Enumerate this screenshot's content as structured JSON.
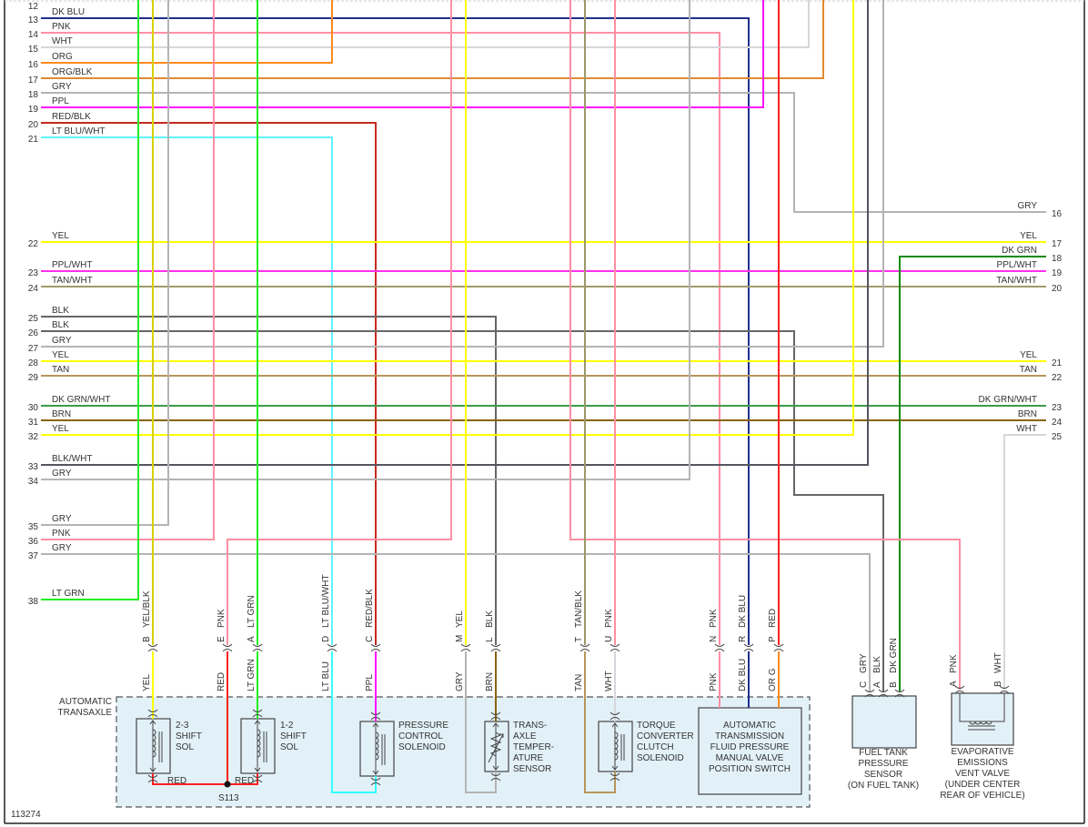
{
  "diagram_id": "113274",
  "left_pins": [
    {
      "num": "12",
      "label": ""
    },
    {
      "num": "13",
      "label": "DK BLU"
    },
    {
      "num": "14",
      "label": "PNK"
    },
    {
      "num": "15",
      "label": "WHT"
    },
    {
      "num": "16",
      "label": "ORG"
    },
    {
      "num": "17",
      "label": "ORG/BLK"
    },
    {
      "num": "18",
      "label": "GRY"
    },
    {
      "num": "19",
      "label": "PPL"
    },
    {
      "num": "20",
      "label": "RED/BLK"
    },
    {
      "num": "21",
      "label": "LT BLU/WHT"
    },
    {
      "num": "22",
      "label": "YEL"
    },
    {
      "num": "23",
      "label": "PPL/WHT"
    },
    {
      "num": "24",
      "label": "TAN/WHT"
    },
    {
      "num": "25",
      "label": "BLK"
    },
    {
      "num": "26",
      "label": "BLK"
    },
    {
      "num": "27",
      "label": "GRY"
    },
    {
      "num": "28",
      "label": "YEL"
    },
    {
      "num": "29",
      "label": "TAN"
    },
    {
      "num": "30",
      "label": "DK GRN/WHT"
    },
    {
      "num": "31",
      "label": "BRN"
    },
    {
      "num": "32",
      "label": "YEL"
    },
    {
      "num": "33",
      "label": "BLK/WHT"
    },
    {
      "num": "34",
      "label": "GRY"
    },
    {
      "num": "35",
      "label": "GRY"
    },
    {
      "num": "36",
      "label": "PNK"
    },
    {
      "num": "37",
      "label": "GRY"
    },
    {
      "num": "38",
      "label": "LT GRN"
    }
  ],
  "right_pins": [
    {
      "num": "16",
      "label": "GRY"
    },
    {
      "num": "17",
      "label": "YEL"
    },
    {
      "num": "18",
      "label": "DK GRN"
    },
    {
      "num": "19",
      "label": "PPL/WHT"
    },
    {
      "num": "20",
      "label": "TAN/WHT"
    },
    {
      "num": "21",
      "label": "YEL"
    },
    {
      "num": "22",
      "label": "TAN"
    },
    {
      "num": "23",
      "label": "DK GRN/WHT"
    },
    {
      "num": "24",
      "label": "BRN"
    },
    {
      "num": "25",
      "label": "WHT"
    }
  ],
  "connectors": [
    {
      "letter": "B",
      "upper": "YEL/BLK",
      "lower": "YEL"
    },
    {
      "letter": "E",
      "upper": "PNK",
      "lower": "RED"
    },
    {
      "letter": "A",
      "upper": "LT GRN",
      "lower": "LT GRN"
    },
    {
      "letter": "D",
      "upper": "LT BLU/WHT",
      "lower": "LT BLU"
    },
    {
      "letter": "C",
      "upper": "RED/BLK",
      "lower": "PPL"
    },
    {
      "letter": "M",
      "upper": "YEL",
      "lower": "GRY"
    },
    {
      "letter": "L",
      "upper": "BLK",
      "lower": "BRN"
    },
    {
      "letter": "T",
      "upper": "TAN/BLK",
      "lower": "TAN"
    },
    {
      "letter": "U",
      "upper": "PNK",
      "lower": "WHT"
    },
    {
      "letter": "N",
      "upper": "PNK",
      "lower": "PNK"
    },
    {
      "letter": "R",
      "upper": "DK BLU",
      "lower": "DK BLU"
    },
    {
      "letter": "P",
      "upper": "RED",
      "lower": "OR G"
    }
  ],
  "fuel_tank_connector": [
    {
      "letter": "C",
      "color": "GRY"
    },
    {
      "letter": "A",
      "color": "BLK"
    },
    {
      "letter": "B",
      "color": "DK GRN"
    }
  ],
  "evap_connector": [
    {
      "letter": "A",
      "color": "PNK"
    },
    {
      "letter": "B",
      "color": "WHT"
    }
  ],
  "transaxle_label": [
    "AUTOMATIC",
    "TRANSAXLE"
  ],
  "components": {
    "shift_23": [
      "2-3",
      "SHIFT",
      "SOL"
    ],
    "shift_12": [
      "1-2",
      "SHIFT",
      "SOL"
    ],
    "pressure_control": [
      "PRESSURE",
      "CONTROL",
      "SOLENOID"
    ],
    "temp_sensor": [
      "TRANS-",
      "AXLE",
      "TEMPER-",
      "ATURE",
      "SENSOR"
    ],
    "tcc_solenoid": [
      "TORQUE",
      "CONVERTER",
      "CLUTCH",
      "SOLENOID"
    ],
    "pressure_switch": [
      "AUTOMATIC",
      "TRANSMISSION",
      "FLUID PRESSURE",
      "MANUAL VALVE",
      "POSITION SWITCH"
    ],
    "fuel_tank_sensor": [
      "FUEL TANK",
      "PRESSURE",
      "SENSOR",
      "(ON FUEL TANK)"
    ],
    "evap_vent_valve": [
      "EVAPORATIVE",
      "EMISSIONS",
      "VENT VALVE",
      "(UNDER CENTER",
      "REAR OF VEHICLE)"
    ]
  },
  "splice": {
    "id": "S113",
    "left_label": "RED",
    "right_label": "RED"
  },
  "wire_colors": {
    "DK BLU": "#1f2f8f",
    "PNK": "#ff8fa3",
    "WHT": "#d6d6dc",
    "ORG": "#ff8a1c",
    "ORG/BLK": "#e08a30",
    "GRY": "#b4b4b4",
    "PPL": "#ff10ff",
    "RED/BLK": "#c42a1e",
    "LT BLU/WHT": "#5ff2ff",
    "YEL": "#ffff00",
    "PPL/WHT": "#ff30f0",
    "TAN/WHT": "#a09a68",
    "BLK": "#666666",
    "TAN": "#b8955a",
    "DK GRN/WHT": "#3f9a4a",
    "BRN": "#8a6410",
    "BLK/WHT": "#55555f",
    "LT GRN": "#22ee22",
    "DK GRN": "#118a11",
    "RED": "#ff2020",
    "TAN/BLK": "#9c9868",
    "YEL/BLK": "#d8d000",
    "LT BLU": "#30ffff",
    "box_fill": "#e2f1f8",
    "ink": "#444444"
  }
}
